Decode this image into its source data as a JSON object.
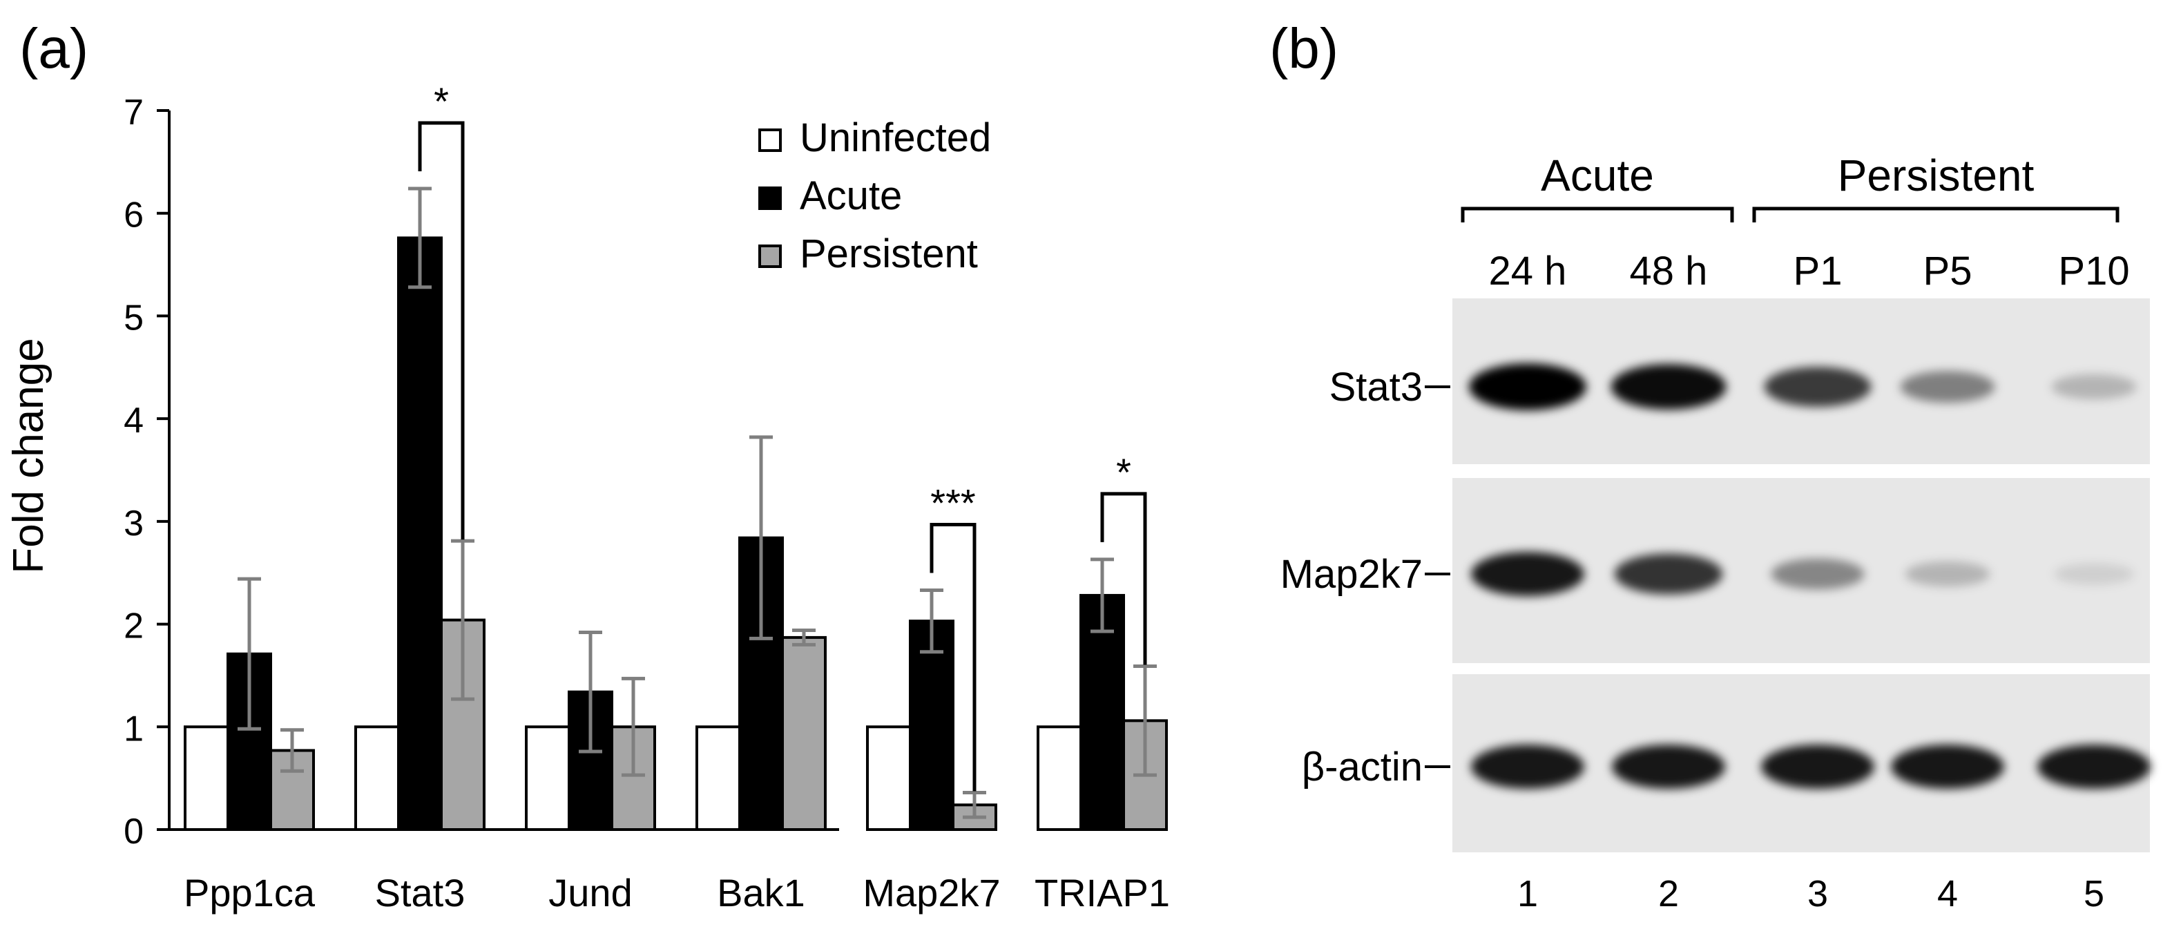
{
  "panel_a": {
    "label": "(a)",
    "chart_data": {
      "type": "bar",
      "title": "",
      "xlabel": "",
      "ylabel": "Fold change",
      "ylim": [
        0,
        7
      ],
      "yticks": [
        "0",
        "1",
        "2",
        "3",
        "4",
        "5",
        "6",
        "7"
      ],
      "categories": [
        "Ppp1ca",
        "Stat3",
        "Jund",
        "Bak1",
        "Map2k7",
        "TRIAP1"
      ],
      "series": [
        {
          "name": "Uninfected",
          "color": "#ffffff",
          "values": [
            1,
            1,
            1,
            1,
            1,
            1
          ],
          "errors": [
            0,
            0,
            0,
            0,
            0,
            0
          ]
        },
        {
          "name": "Acute",
          "color": "#000000",
          "values": [
            1.71,
            5.76,
            1.34,
            2.84,
            2.03,
            2.28
          ],
          "errors": [
            0.73,
            0.48,
            0.58,
            0.98,
            0.3,
            0.35
          ]
        },
        {
          "name": "Persistent",
          "color": "#a6a6a6",
          "values": [
            0.77,
            2.04,
            1.0,
            1.87,
            0.24,
            1.06
          ],
          "errors": [
            0.2,
            0.77,
            0.47,
            0.07,
            0.12,
            0.53
          ]
        }
      ],
      "legend_position": "top-right",
      "significance": [
        {
          "category": "Stat3",
          "label": "*"
        },
        {
          "category": "Map2k7",
          "label": "***"
        },
        {
          "category": "TRIAP1",
          "label": "*"
        }
      ]
    }
  },
  "panel_b": {
    "label": "(b)",
    "groups": [
      "Acute",
      "Persistent"
    ],
    "timepoints": [
      "24 h",
      "48 h",
      "P1",
      "P5",
      "P10"
    ],
    "lane_numbers": [
      "1",
      "2",
      "3",
      "4",
      "5"
    ],
    "blots": [
      {
        "name": "Stat3",
        "intensity": [
          1.0,
          0.95,
          0.75,
          0.45,
          0.22
        ]
      },
      {
        "name": "Map2k7",
        "intensity": [
          0.9,
          0.78,
          0.42,
          0.22,
          0.1
        ]
      },
      {
        "name": "β-actin",
        "intensity": [
          0.9,
          0.9,
          0.9,
          0.9,
          0.9
        ]
      }
    ]
  }
}
